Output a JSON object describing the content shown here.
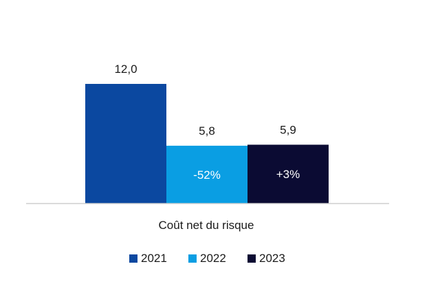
{
  "chart_data": {
    "type": "bar",
    "title": "",
    "xlabel": "",
    "ylabel": "",
    "categories": [
      "Coût net du risque"
    ],
    "series": [
      {
        "name": "2021",
        "values": [
          12.0
        ],
        "value_label": "12,0",
        "inbar_label": "",
        "color": "#0b48a0"
      },
      {
        "name": "2022",
        "values": [
          5.8
        ],
        "value_label": "5,8",
        "inbar_label": "-52%",
        "color": "#0a9ee3"
      },
      {
        "name": "2023",
        "values": [
          5.9
        ],
        "value_label": "5,9",
        "inbar_label": "+3%",
        "color": "#0b0b33"
      }
    ],
    "ylim": [
      0,
      12.0
    ],
    "grid": false,
    "legend_position": "bottom"
  }
}
